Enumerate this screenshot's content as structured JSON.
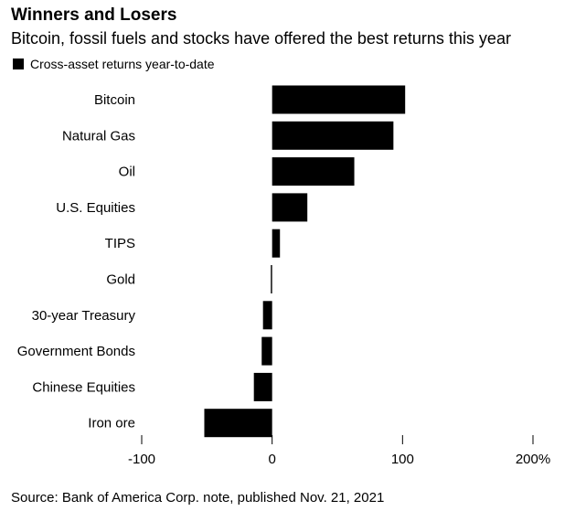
{
  "title": "Winners and Losers",
  "subtitle": "Bitcoin, fossil fuels and stocks have offered the best returns this year",
  "source": "Source: Bank of America Corp. note, published Nov. 21, 2021",
  "chart_data": {
    "type": "bar",
    "orientation": "horizontal",
    "title": "Winners and Losers",
    "subtitle": "Bitcoin, fossil fuels and stocks have offered the best returns this year",
    "legend": [
      "Cross-asset returns year-to-date"
    ],
    "legend_position": "top-left",
    "categories": [
      "Bitcoin",
      "Natural Gas",
      "Oil",
      "U.S. Equities",
      "TIPS",
      "Gold",
      "30-year Treasury",
      "Government Bonds",
      "Chinese Equities",
      "Iron ore"
    ],
    "series": [
      {
        "name": "Cross-asset returns year-to-date",
        "values": [
          102,
          93,
          63,
          27,
          6,
          -1,
          -7,
          -8,
          -14,
          -52
        ]
      }
    ],
    "xlim": [
      -100,
      200
    ],
    "xticks": [
      -100,
      0,
      100,
      200
    ],
    "xtick_labels": [
      "-100",
      "0",
      "100",
      "200%"
    ],
    "xlabel": "",
    "ylabel": "",
    "grid": false,
    "bar_color": "#000000"
  }
}
